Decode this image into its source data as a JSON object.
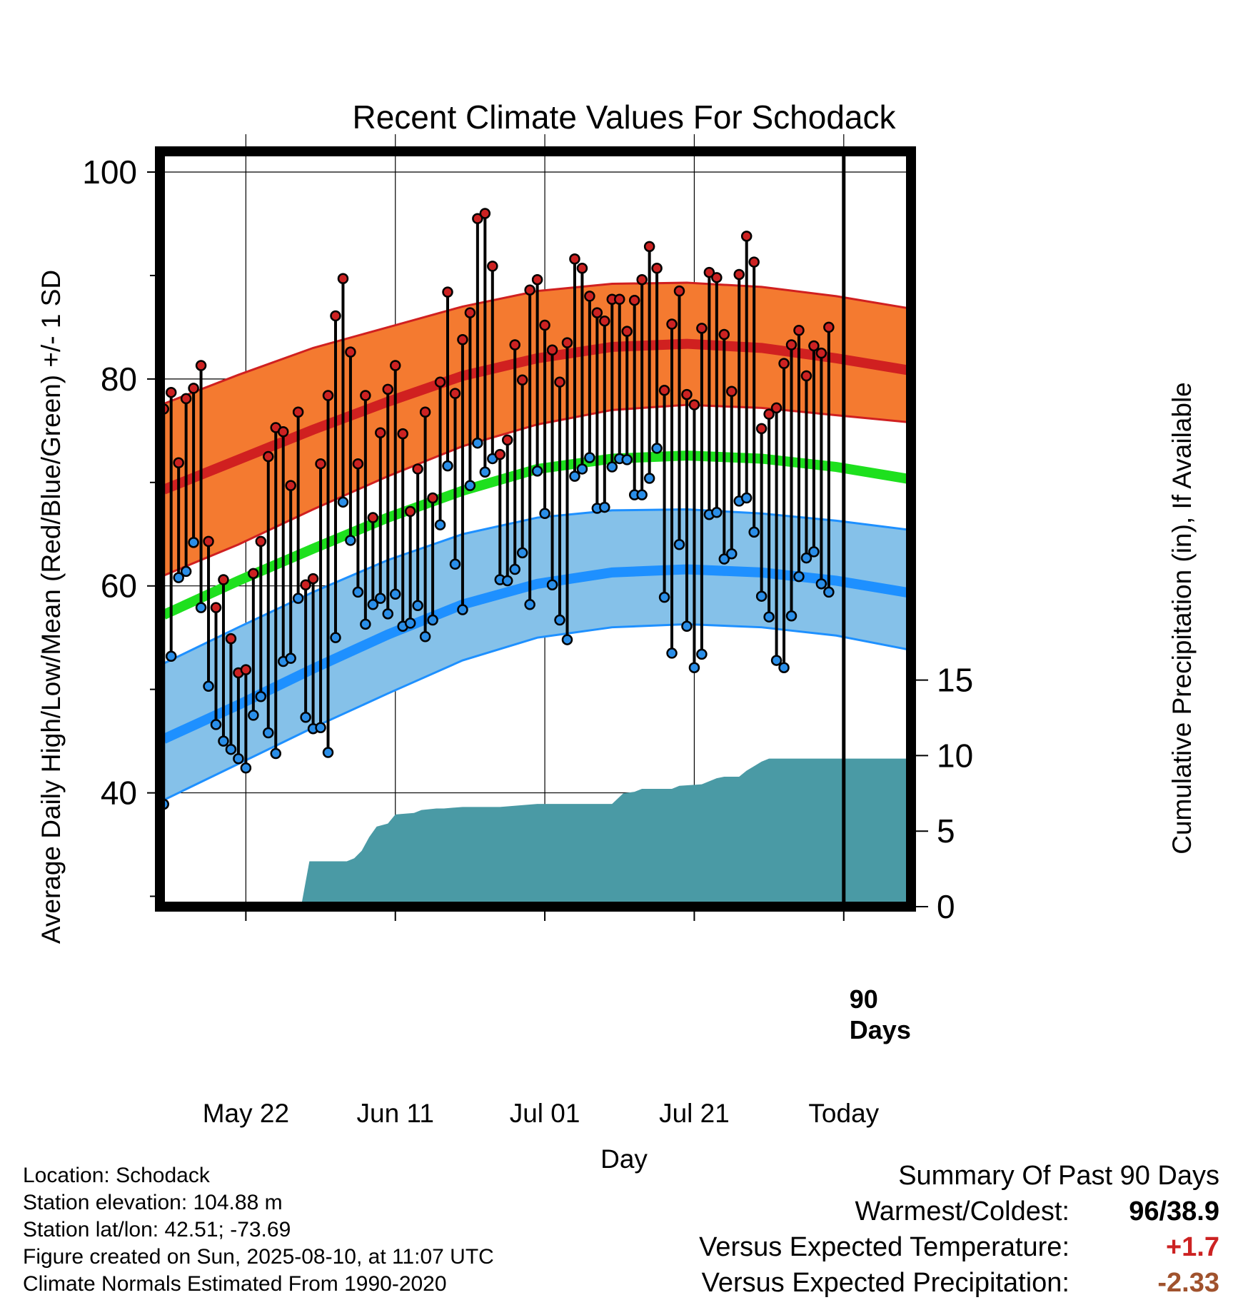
{
  "chart_data": {
    "type": "line",
    "title": "Recent Climate Values For Schodack",
    "xlabel": "Day",
    "ylabel": "Average Daily High/Low/Mean (Red/Blue/Green) +/- 1 SD",
    "y2label": "Cumulative Precipitation (in), If Available",
    "ylim": [
      29,
      102
    ],
    "y2lim": [
      0,
      50
    ],
    "xlim": [
      -0.5,
      100
    ],
    "x_ticks": [
      {
        "x": 11,
        "label": "May 22"
      },
      {
        "x": 31,
        "label": "Jun 11"
      },
      {
        "x": 51,
        "label": "Jul 01"
      },
      {
        "x": 71,
        "label": "Jul 21"
      },
      {
        "x": 91,
        "label": "Today"
      }
    ],
    "y_ticks": [
      40,
      60,
      80,
      100
    ],
    "y_minor_ticks": [
      30,
      50,
      70,
      90
    ],
    "y2_ticks": [
      0,
      5,
      10,
      15
    ],
    "today_marker": {
      "x": 91,
      "label_line1": "90",
      "label_line2": "Days"
    },
    "normals": {
      "x": [
        0,
        10,
        20,
        30,
        40,
        50,
        60,
        70,
        80,
        90,
        100
      ],
      "high_mean": [
        69.3,
        72.2,
        75.1,
        77.8,
        80.3,
        82.0,
        83.1,
        83.4,
        83.0,
        82.0,
        80.8
      ],
      "high_upper": [
        77.6,
        80.4,
        83.0,
        85.0,
        87.0,
        88.5,
        89.2,
        89.3,
        88.9,
        88.0,
        86.8
      ],
      "high_lower": [
        61.0,
        64.0,
        67.4,
        70.6,
        73.5,
        75.6,
        77.0,
        77.5,
        77.2,
        76.5,
        75.8
      ],
      "mean": [
        57.2,
        60.5,
        63.6,
        66.6,
        69.2,
        71.3,
        72.3,
        72.6,
        72.3,
        71.5,
        70.3
      ],
      "low_mean": [
        45.2,
        48.5,
        52.0,
        55.3,
        58.2,
        60.2,
        61.3,
        61.6,
        61.3,
        60.5,
        59.3
      ],
      "low_upper": [
        52.5,
        56.0,
        59.4,
        62.5,
        65.0,
        66.6,
        67.3,
        67.4,
        67.0,
        66.3,
        65.4
      ],
      "low_lower": [
        39.3,
        42.8,
        46.3,
        49.6,
        52.8,
        55.0,
        56.0,
        56.3,
        56.0,
        55.2,
        53.8
      ]
    },
    "daily": {
      "high": [
        77.1,
        78.7,
        71.9,
        78.1,
        79.1,
        81.3,
        64.3,
        57.9,
        60.6,
        54.9,
        51.6,
        51.9,
        61.2,
        64.3,
        72.5,
        75.3,
        74.9,
        69.7,
        76.8,
        60.1,
        60.7,
        71.8,
        78.4,
        86.1,
        89.7,
        82.6,
        71.8,
        78.4,
        66.6,
        74.8,
        79.0,
        81.3,
        74.7,
        67.2,
        71.3,
        76.8,
        68.5,
        79.7,
        88.4,
        78.6,
        83.8,
        86.4,
        95.5,
        96.0,
        90.9,
        72.7,
        74.1,
        83.3,
        79.9,
        88.6,
        89.6,
        85.2,
        82.8,
        79.7,
        83.5,
        91.6,
        90.7,
        88.0,
        86.4,
        85.6,
        87.7,
        87.7,
        84.6,
        87.6,
        89.6,
        92.8,
        90.7,
        78.9,
        85.3,
        88.5,
        78.5,
        77.5,
        84.9,
        90.3,
        89.8,
        84.3,
        78.8,
        90.1,
        93.8,
        91.3,
        75.2,
        76.6,
        77.2,
        81.5,
        83.3,
        84.7,
        80.3,
        83.2,
        82.5,
        85.0
      ],
      "low": [
        38.9,
        53.2,
        60.8,
        61.4,
        64.2,
        57.9,
        50.3,
        46.6,
        45.0,
        44.2,
        43.3,
        42.4,
        47.5,
        49.3,
        45.8,
        43.8,
        52.7,
        53.0,
        58.8,
        47.3,
        46.2,
        46.3,
        43.9,
        55.0,
        68.1,
        64.4,
        59.4,
        56.3,
        58.2,
        58.8,
        57.3,
        59.2,
        56.1,
        56.4,
        58.1,
        55.1,
        56.7,
        65.9,
        71.6,
        62.1,
        57.7,
        69.7,
        73.8,
        71.0,
        72.3,
        60.6,
        60.5,
        61.6,
        63.2,
        58.2,
        71.1,
        67.0,
        60.1,
        56.7,
        54.8,
        70.6,
        71.3,
        72.4,
        67.5,
        67.6,
        71.5,
        72.3,
        72.2,
        68.8,
        68.8,
        70.4,
        73.3,
        58.9,
        53.5,
        64.0,
        56.1,
        52.1,
        53.4,
        66.9,
        67.1,
        62.6,
        63.1,
        68.2,
        68.5,
        65.2,
        59.0,
        57.0,
        52.8,
        52.1,
        57.1,
        60.9,
        62.7,
        63.3,
        60.2,
        59.4
      ]
    },
    "precip": {
      "x": [
        0,
        10.5,
        11.5,
        18.5,
        19.5,
        24.5,
        25.5,
        26.5,
        27.5,
        28.5,
        30,
        31,
        33.5,
        34.5,
        36.5,
        37.5,
        40,
        45,
        50,
        56,
        60,
        61.5,
        63,
        64,
        68,
        69,
        72,
        73,
        74,
        75,
        77,
        78,
        79,
        80,
        81,
        100
      ],
      "y": [
        0,
        0,
        0.3,
        0.3,
        3.0,
        3.0,
        3.2,
        3.7,
        4.6,
        5.3,
        5.5,
        6.1,
        6.2,
        6.4,
        6.5,
        6.5,
        6.6,
        6.6,
        6.8,
        6.8,
        6.8,
        7.5,
        7.6,
        7.8,
        7.8,
        8.0,
        8.1,
        8.3,
        8.5,
        8.6,
        8.6,
        9.0,
        9.3,
        9.6,
        9.8,
        9.8
      ]
    },
    "colors": {
      "high_band": "#f47a30",
      "high_line": "#d02020",
      "high_edge": "#d02020",
      "low_band": "#85c1e9",
      "low_line": "#1e90ff",
      "low_edge": "#1e90ff",
      "mean_line": "#1ee01e",
      "precip": "#4a9aa5",
      "high_dot": "#cc2222",
      "low_dot": "#2a8ee8"
    }
  },
  "info": {
    "location": "Location: Schodack",
    "elevation": "Station elevation: 104.88 m",
    "latlon": "Station lat/lon: 42.51; -73.69",
    "created": "Figure created on Sun, 2025-08-10, at 11:07 UTC",
    "normals": "Climate Normals Estimated From 1990-2020"
  },
  "summary": {
    "title": "Summary Of Past 90 Days",
    "warmest_label": "Warmest/Coldest:",
    "warmest_value": "96/38.9",
    "temp_label": "Versus Expected Temperature:",
    "temp_value": "+1.7",
    "temp_color": "#cc2222",
    "precip_label": "Versus Expected Precipitation:",
    "precip_value": "-2.33",
    "precip_color": "#a0522d"
  }
}
